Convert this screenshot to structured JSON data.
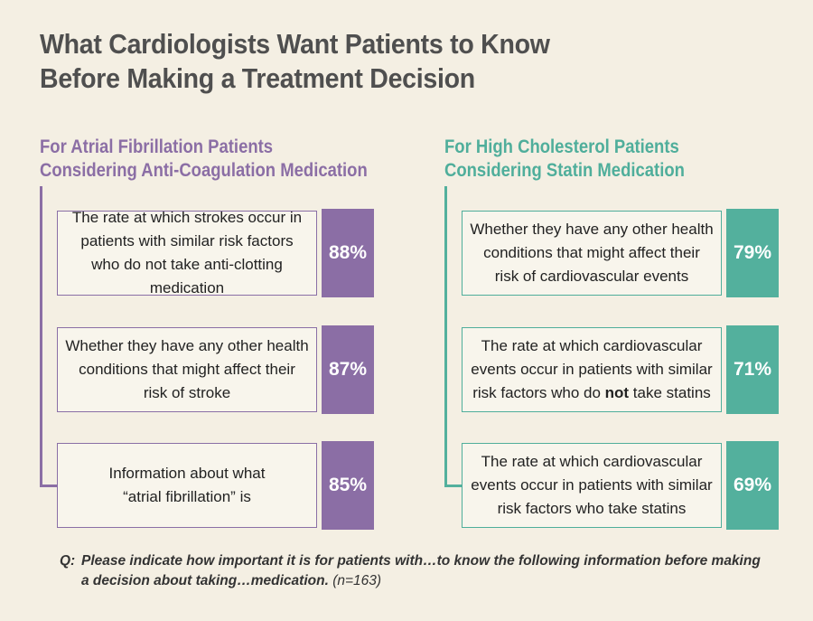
{
  "title": {
    "line1": "What Cardiologists Want Patients to Know",
    "line2": "Before Making a Treatment Decision"
  },
  "colors": {
    "purple": "#8b6ea5",
    "teal": "#53b09d",
    "background": "#f4efe3",
    "title": "#4f4f4f"
  },
  "chart_data": {
    "type": "table",
    "title": "What Cardiologists Want Patients to Know Before Making a Treatment Decision",
    "unit": "%",
    "panels": [
      {
        "name": "For Atrial Fibrillation Patients Considering Anti-Coagulation Medication",
        "heading_line1": "For Atrial Fibrillation Patients",
        "heading_line2": "Considering Anti-Coagulation Medication",
        "items": [
          {
            "text": "The rate at which strokes occur in patients with similar risk factors who do not take anti-clotting medication",
            "value": 88,
            "label": "88%"
          },
          {
            "text": "Whether they have any other health conditions that might affect their risk of stroke",
            "value": 87,
            "label": "87%"
          },
          {
            "text": "Information about what “atrial fibrillation” is",
            "value": 85,
            "label": "85%"
          }
        ]
      },
      {
        "name": "For High Cholesterol Patients Considering Statin Medication",
        "heading_line1": "For High Cholesterol Patients",
        "heading_line2": "Considering Statin Medication",
        "items": [
          {
            "text": "Whether they have any other health conditions that might affect their risk of cardiovascular events",
            "value": 79,
            "label": "79%"
          },
          {
            "text_before": "The rate at which cardiovascular events occur in patients with similar risk factors who do ",
            "text_emph": "not",
            "text_after": " take statins",
            "value": 71,
            "label": "71%"
          },
          {
            "text": "The rate at which cardiovascular events occur in patients with similar risk factors who take statins",
            "value": 69,
            "label": "69%"
          }
        ]
      }
    ]
  },
  "footnote": {
    "q": "Q:",
    "line1": "Please indicate how important it is for patients with…to know the following information before making",
    "line2": "a decision about taking…medication.",
    "n": "(n=163)"
  }
}
